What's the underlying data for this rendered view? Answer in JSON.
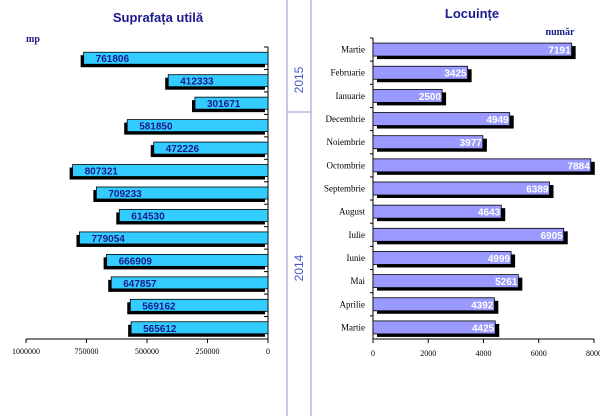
{
  "colors": {
    "background": "#ffffff",
    "divider": "#8a93d8",
    "title": "#1a1a8c",
    "left_bar": "#33ccff",
    "left_label": "#1a1a8c",
    "right_bar": "#9999ff",
    "right_label": "#ffffff",
    "shadow": "#000000",
    "year_label": "#4a57c8"
  },
  "years": {
    "upper": "2015",
    "lower": "2014"
  },
  "chart_data": [
    {
      "type": "bar",
      "orientation": "horizontal",
      "direction": "right-to-left",
      "title": "Suprafața utilă",
      "unit_label": "mp",
      "values": [
        761806,
        412333,
        301671,
        581850,
        472226,
        807321,
        709233,
        614530,
        779054,
        666909,
        647857,
        569162,
        565612
      ],
      "xlim": [
        0,
        1000000
      ],
      "x_ticks": [
        {
          "value": 1000000,
          "label": "1000000"
        },
        {
          "value": 750000,
          "label": "750000"
        },
        {
          "value": 500000,
          "label": "500000"
        },
        {
          "value": 250000,
          "label": "250000"
        },
        {
          "value": 0,
          "label": "0"
        }
      ],
      "grid": false,
      "data_labels": true
    },
    {
      "type": "bar",
      "orientation": "horizontal",
      "title": "Locuințe",
      "unit_label": "număr",
      "categories": [
        "Martie",
        "Februarie",
        "Ianuarie",
        "Decembrie",
        "Noiembrie",
        "Octombrie",
        "Septembrie",
        "August",
        "Iulie",
        "Iunie",
        "Mai",
        "Aprilie",
        "Martie"
      ],
      "values": [
        7191,
        3425,
        2500,
        4949,
        3977,
        7884,
        6389,
        4643,
        6905,
        4999,
        5261,
        4392,
        4425
      ],
      "xlim": [
        0,
        8000
      ],
      "x_ticks": [
        {
          "value": 0,
          "label": "0"
        },
        {
          "value": 2000,
          "label": "2000"
        },
        {
          "value": 4000,
          "label": "4000"
        },
        {
          "value": 6000,
          "label": "6000"
        },
        {
          "value": 8000,
          "label": "8000"
        }
      ],
      "grid": false,
      "data_labels": true
    }
  ]
}
